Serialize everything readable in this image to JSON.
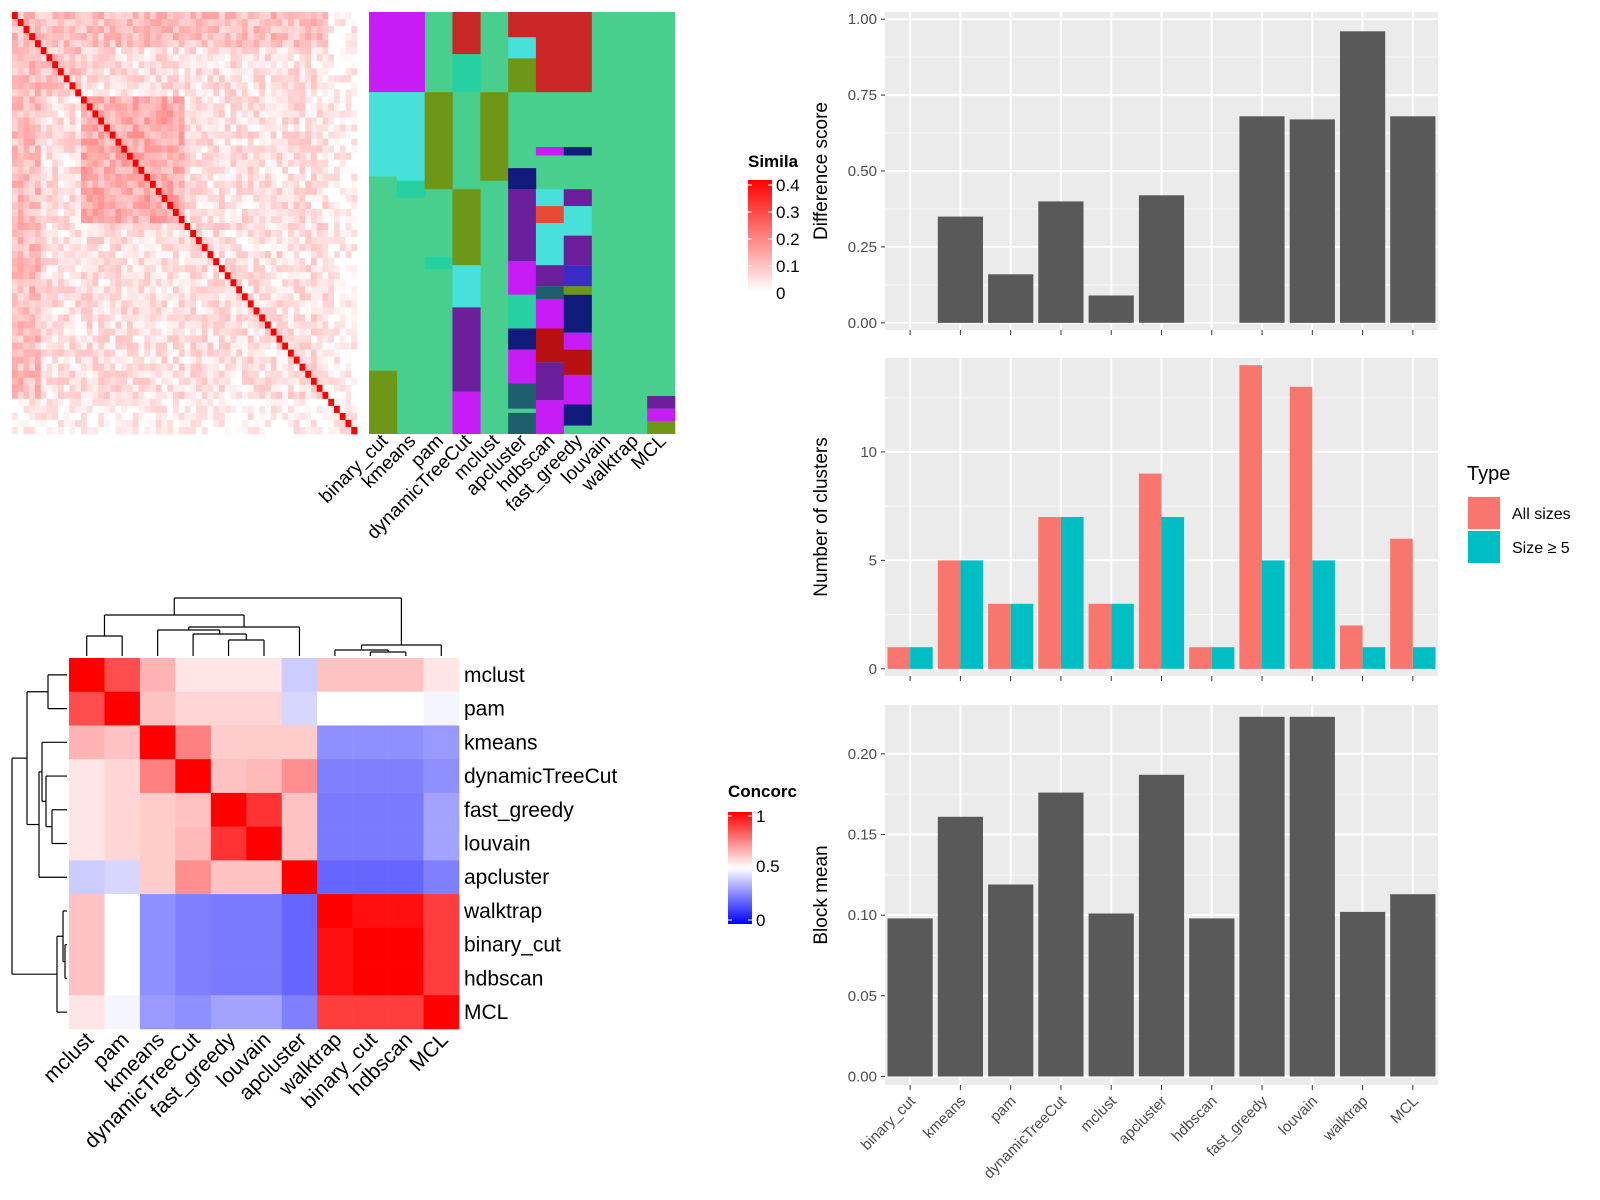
{
  "panels": {
    "similarity_heatmap": {
      "legend_title": "Simila",
      "legend_ticks": [
        "0.4",
        "0.3",
        "0.2",
        "0.1",
        "0"
      ],
      "legend_colors": [
        "#ffffff",
        "#ff0000"
      ],
      "method_labels": [
        "binary_cut",
        "kmeans",
        "pam",
        "dynamicTreeCut",
        "mclust",
        "apcluster",
        "hdbscan",
        "fast_greedy",
        "louvain",
        "walktrap",
        "MCL"
      ],
      "cluster_background_color": "#48cf8e"
    },
    "concordance_heatmap": {
      "legend_title": "Concorc",
      "legend_ticks": [
        "1",
        "0.5",
        "0"
      ],
      "legend_colors": [
        "#0000ff",
        "#ffffff",
        "#ff0000"
      ],
      "row_labels": [
        "mclust",
        "pam",
        "kmeans",
        "dynamicTreeCut",
        "fast_greedy",
        "louvain",
        "apcluster",
        "walktrap",
        "binary_cut",
        "hdbscan",
        "MCL"
      ],
      "col_labels": [
        "mclust",
        "pam",
        "kmeans",
        "dynamicTreeCut",
        "fast_greedy",
        "louvain",
        "apcluster",
        "walktrap",
        "binary_cut",
        "hdbscan",
        "MCL"
      ]
    }
  },
  "chart_data": [
    {
      "type": "heatmap",
      "title": "",
      "legend_title": "Concorc",
      "legend_range": [
        0,
        1
      ],
      "rows": [
        "mclust",
        "pam",
        "kmeans",
        "dynamicTreeCut",
        "fast_greedy",
        "louvain",
        "apcluster",
        "walktrap",
        "binary_cut",
        "hdbscan",
        "MCL"
      ],
      "cols": [
        "mclust",
        "pam",
        "kmeans",
        "dynamicTreeCut",
        "fast_greedy",
        "louvain",
        "apcluster",
        "walktrap",
        "binary_cut",
        "hdbscan",
        "MCL"
      ],
      "values": [
        [
          1.0,
          0.85,
          0.65,
          0.55,
          0.55,
          0.55,
          0.4,
          0.62,
          0.62,
          0.62,
          0.55
        ],
        [
          0.85,
          1.0,
          0.62,
          0.58,
          0.58,
          0.58,
          0.42,
          0.5,
          0.5,
          0.5,
          0.48
        ],
        [
          0.65,
          0.62,
          1.0,
          0.75,
          0.6,
          0.6,
          0.6,
          0.28,
          0.28,
          0.28,
          0.3
        ],
        [
          0.55,
          0.58,
          0.75,
          1.0,
          0.62,
          0.64,
          0.72,
          0.25,
          0.25,
          0.25,
          0.28
        ],
        [
          0.55,
          0.58,
          0.6,
          0.62,
          1.0,
          0.9,
          0.62,
          0.24,
          0.24,
          0.24,
          0.32
        ],
        [
          0.55,
          0.58,
          0.6,
          0.64,
          0.9,
          1.0,
          0.62,
          0.24,
          0.24,
          0.24,
          0.32
        ],
        [
          0.4,
          0.42,
          0.6,
          0.72,
          0.62,
          0.62,
          1.0,
          0.2,
          0.2,
          0.2,
          0.25
        ],
        [
          0.62,
          0.5,
          0.28,
          0.25,
          0.24,
          0.24,
          0.2,
          1.0,
          0.97,
          0.97,
          0.88
        ],
        [
          0.62,
          0.5,
          0.28,
          0.25,
          0.24,
          0.24,
          0.2,
          0.97,
          1.0,
          1.0,
          0.88
        ],
        [
          0.62,
          0.5,
          0.28,
          0.25,
          0.24,
          0.24,
          0.2,
          0.97,
          1.0,
          1.0,
          0.88
        ],
        [
          0.55,
          0.48,
          0.3,
          0.28,
          0.32,
          0.32,
          0.25,
          0.88,
          0.88,
          0.88,
          1.0
        ]
      ]
    },
    {
      "type": "bar",
      "title": "",
      "xlabel": "",
      "ylabel": "Difference score",
      "ylim": [
        0,
        1.0
      ],
      "yticks": [
        "0.00",
        "0.25",
        "0.50",
        "0.75",
        "1.00"
      ],
      "categories": [
        "binary_cut",
        "kmeans",
        "pam",
        "dynamicTreeCut",
        "mclust",
        "apcluster",
        "hdbscan",
        "fast_greedy",
        "louvain",
        "walktrap",
        "MCL"
      ],
      "values": [
        0,
        0.35,
        0.16,
        0.4,
        0.09,
        0.42,
        0,
        0.68,
        0.67,
        0.96,
        0.68
      ]
    },
    {
      "type": "bar",
      "title": "",
      "xlabel": "",
      "ylabel": "Number of clusters",
      "ylim": [
        0,
        14
      ],
      "yticks": [
        "0",
        "5",
        "10"
      ],
      "categories": [
        "binary_cut",
        "kmeans",
        "pam",
        "dynamicTreeCut",
        "mclust",
        "apcluster",
        "hdbscan",
        "fast_greedy",
        "louvain",
        "walktrap",
        "MCL"
      ],
      "legend_title": "Type",
      "legend_position": "right",
      "series": [
        {
          "name": "All sizes",
          "color": "#f8766d",
          "values": [
            1,
            5,
            3,
            7,
            3,
            9,
            1,
            14,
            13,
            2,
            6
          ]
        },
        {
          "name": "Size ≥ 5",
          "color": "#00bfc4",
          "values": [
            1,
            5,
            3,
            7,
            3,
            7,
            1,
            5,
            5,
            1,
            1
          ]
        }
      ]
    },
    {
      "type": "bar",
      "title": "",
      "xlabel": "",
      "ylabel": "Block mean",
      "ylim": [
        0,
        0.225
      ],
      "yticks": [
        "0.00",
        "0.05",
        "0.10",
        "0.15",
        "0.20"
      ],
      "categories": [
        "binary_cut",
        "kmeans",
        "pam",
        "dynamicTreeCut",
        "mclust",
        "apcluster",
        "hdbscan",
        "fast_greedy",
        "louvain",
        "walktrap",
        "MCL"
      ],
      "values": [
        0.098,
        0.161,
        0.119,
        0.176,
        0.101,
        0.187,
        0.098,
        0.223,
        0.223,
        0.102,
        0.113
      ]
    }
  ]
}
